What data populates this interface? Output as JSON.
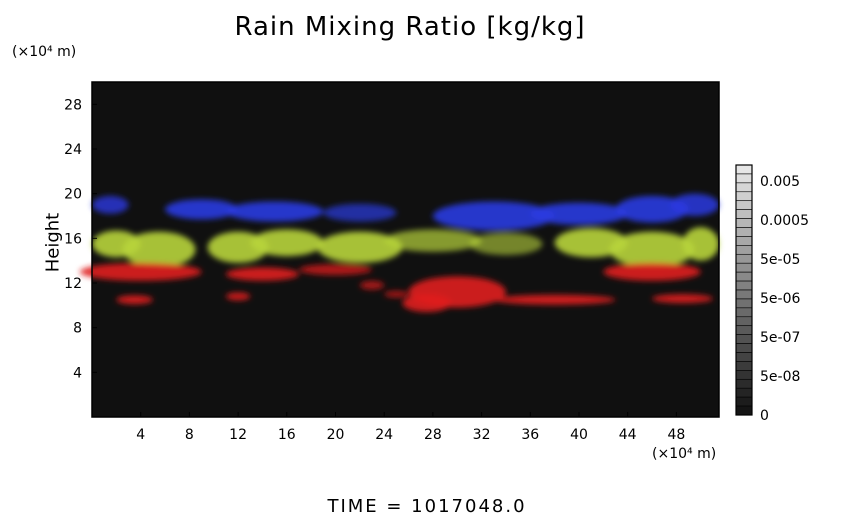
{
  "chart_data": {
    "type": "heatmap",
    "title": "Rain Mixing Ratio [kg/kg]",
    "ylabel": "Height",
    "yunit": "(×10⁴ m)",
    "xunit": "(×10⁴ m)",
    "xlim": [
      0,
      51.5
    ],
    "ylim": [
      0,
      30
    ],
    "xticks": [
      "4",
      "8",
      "12",
      "16",
      "20",
      "24",
      "28",
      "32",
      "36",
      "40",
      "44",
      "48"
    ],
    "yticks": [
      "4",
      "8",
      "12",
      "16",
      "20",
      "24",
      "28"
    ],
    "colorbar_labels": [
      "0.005",
      "0.0005",
      "5e-05",
      "5e-06",
      "5e-07",
      "5e-08",
      "0"
    ],
    "regions": [
      {
        "band": "blue",
        "x": [
          0,
          51.5
        ],
        "y": [
          16.5,
          20
        ]
      },
      {
        "band": "yellow-green",
        "x": [
          0,
          51.5
        ],
        "y": [
          13.5,
          17
        ]
      },
      {
        "band": "red",
        "x": [
          0,
          51.5
        ],
        "y": [
          9.5,
          14
        ]
      }
    ],
    "grid": false,
    "background": "#101010"
  },
  "footer": {
    "time": "TIME = 1017048.0"
  },
  "colors": {
    "plot_bg": "#101010",
    "blue": "#2a3ae0",
    "yellow_green": "#b8d43a",
    "red": "#e01e1e"
  }
}
